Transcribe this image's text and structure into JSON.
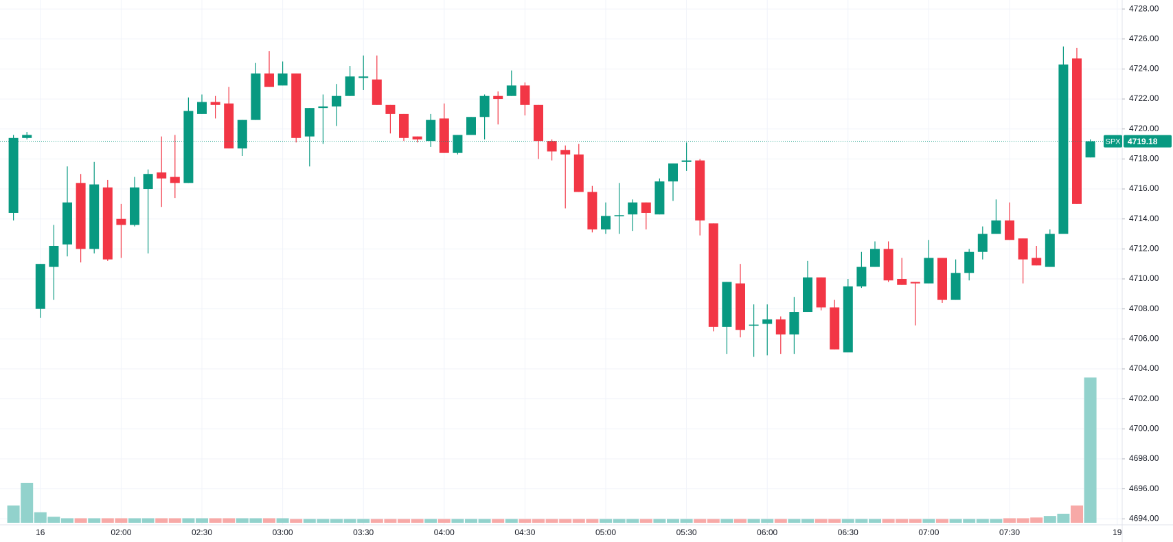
{
  "chart_data": {
    "type": "candlestick",
    "categories": [
      null,
      null,
      "16",
      null,
      null,
      null,
      null,
      null,
      "02:00",
      null,
      null,
      null,
      null,
      null,
      "02:30",
      null,
      null,
      null,
      null,
      null,
      "03:00",
      null,
      null,
      null,
      null,
      null,
      "03:30",
      null,
      null,
      null,
      null,
      null,
      "04:00",
      null,
      null,
      null,
      null,
      null,
      "04:30",
      null,
      null,
      null,
      null,
      null,
      "05:00",
      null,
      null,
      null,
      null,
      null,
      "05:30",
      null,
      null,
      null,
      null,
      null,
      "06:00",
      null,
      null,
      null,
      null,
      null,
      "06:30",
      null,
      null,
      null,
      null,
      null,
      "07:00",
      null,
      null,
      null,
      null,
      null,
      "07:30",
      null,
      null,
      null,
      null,
      null,
      null,
      null,
      "19"
    ],
    "open": [
      4714.4,
      4719.4,
      4708.0,
      4710.8,
      4712.3,
      4716.4,
      4712.0,
      4716.1,
      4714.0,
      4713.6,
      4716.0,
      4717.1,
      4716.8,
      4716.4,
      4721.0,
      4721.8,
      4721.7,
      4718.7,
      4720.6,
      4723.7,
      4722.9,
      4723.7,
      4719.5,
      4721.4,
      4721.5,
      4722.2,
      4723.4,
      4723.3,
      4721.6,
      4721.0,
      4719.5,
      4719.2,
      4720.7,
      4718.4,
      4719.6,
      4720.8,
      4722.2,
      4722.2,
      4722.9,
      4721.6,
      4719.2,
      4718.6,
      4718.3,
      4715.8,
      4713.3,
      4714.2,
      4714.3,
      4715.1,
      4714.3,
      4716.5,
      4717.8,
      4717.9,
      4713.7,
      4706.8,
      4709.7,
      4706.9,
      4707.0,
      4707.3,
      4706.3,
      4707.8,
      4710.1,
      4708.1,
      4705.1,
      4709.5,
      4710.8,
      4712.0,
      4710.0,
      4709.8,
      4709.7,
      4711.4,
      4708.6,
      4710.4,
      4711.8,
      4713.0,
      4713.9,
      4712.7,
      4711.4,
      4710.8,
      4713.0,
      4724.7,
      4718.1,
      null,
      null
    ],
    "high": [
      4719.6,
      4719.8,
      4711.0,
      4713.6,
      4717.5,
      4717.0,
      4717.8,
      4716.6,
      4715.0,
      4716.8,
      4717.3,
      4719.5,
      4719.6,
      4722.1,
      4722.3,
      4722.2,
      4722.8,
      4720.6,
      4724.4,
      4725.2,
      4724.5,
      4723.7,
      4721.4,
      4722.3,
      4723.0,
      4724.2,
      4724.9,
      4724.9,
      4721.6,
      4721.0,
      4719.5,
      4721.0,
      4721.7,
      4719.6,
      4720.8,
      4722.3,
      4722.5,
      4723.9,
      4723.1,
      4721.6,
      4719.3,
      4718.9,
      4719.0,
      4716.2,
      4715.1,
      4716.4,
      4715.3,
      4715.1,
      4716.7,
      4717.7,
      4719.1,
      4718.0,
      4713.7,
      4709.8,
      4711.0,
      4708.3,
      4708.3,
      4707.5,
      4708.8,
      4711.2,
      4710.1,
      4708.6,
      4710.0,
      4711.8,
      4712.5,
      4712.5,
      4711.4,
      4709.8,
      4712.6,
      4711.4,
      4711.3,
      4712.0,
      4713.5,
      4715.3,
      4715.1,
      4712.7,
      4712.2,
      4713.3,
      4725.5,
      4725.4,
      4719.3,
      null,
      null
    ],
    "low": [
      4713.9,
      4719.3,
      4707.4,
      4708.6,
      4711.5,
      4711.1,
      4711.7,
      4711.2,
      4711.4,
      4713.5,
      4711.7,
      4714.8,
      4715.4,
      4716.4,
      4721.0,
      4720.7,
      4718.7,
      4718.2,
      4720.6,
      4722.8,
      4722.9,
      4719.1,
      4717.5,
      4719.0,
      4720.2,
      4722.2,
      4722.6,
      4721.6,
      4719.7,
      4719.2,
      4719.1,
      4718.8,
      4718.4,
      4718.3,
      4719.6,
      4719.3,
      4720.3,
      4722.2,
      4720.9,
      4718.0,
      4717.9,
      4714.7,
      4715.8,
      4713.1,
      4713.0,
      4713.0,
      4713.2,
      4713.3,
      4714.3,
      4715.2,
      4717.2,
      4712.9,
      4706.5,
      4705.0,
      4706.1,
      4704.8,
      4704.9,
      4705.0,
      4705.0,
      4707.8,
      4707.9,
      4705.3,
      4705.1,
      4709.4,
      4710.8,
      4709.8,
      4709.6,
      4706.9,
      4709.7,
      4708.4,
      4708.6,
      4709.9,
      4711.3,
      4713.0,
      4712.6,
      4709.7,
      4710.9,
      4710.8,
      4713.0,
      4715.0,
      4718.1,
      null,
      null
    ],
    "close": [
      4719.4,
      4719.6,
      4711.0,
      4712.2,
      4715.1,
      4712.0,
      4716.3,
      4711.3,
      4713.6,
      4716.1,
      4717.0,
      4716.7,
      4716.4,
      4721.2,
      4721.8,
      4721.6,
      4718.7,
      4720.6,
      4723.7,
      4722.8,
      4723.7,
      4719.4,
      4721.4,
      4721.5,
      4722.2,
      4723.5,
      4723.5,
      4721.6,
      4721.0,
      4719.4,
      4719.3,
      4720.6,
      4718.4,
      4719.6,
      4720.8,
      4722.2,
      4722.0,
      4722.9,
      4721.6,
      4719.2,
      4718.5,
      4718.3,
      4715.8,
      4713.3,
      4714.2,
      4714.25,
      4715.1,
      4714.4,
      4716.5,
      4717.7,
      4717.9,
      4713.9,
      4706.8,
      4709.8,
      4706.6,
      4706.95,
      4707.3,
      4706.3,
      4707.8,
      4710.1,
      4708.1,
      4705.3,
      4709.5,
      4710.8,
      4712.0,
      4709.9,
      4709.6,
      4709.7,
      4711.4,
      4708.6,
      4710.4,
      4711.8,
      4713.0,
      4713.9,
      4712.6,
      4711.3,
      4710.9,
      4713.0,
      4724.3,
      4715.0,
      4719.18,
      null,
      null
    ],
    "volume": [
      23,
      53,
      14,
      8,
      6,
      6,
      6,
      6,
      6,
      6,
      6,
      6,
      6,
      6,
      6,
      6,
      6,
      6,
      6,
      6,
      6,
      5,
      5,
      5,
      5,
      5,
      5,
      5,
      5,
      5,
      5,
      5,
      5,
      5,
      5,
      5,
      5,
      5,
      5,
      5,
      5,
      5,
      5,
      5,
      5,
      5,
      5,
      5,
      5,
      5,
      5,
      5,
      5,
      5,
      5,
      5,
      5,
      5,
      5,
      5,
      5,
      5,
      5,
      5,
      5,
      5,
      5,
      5,
      5,
      5,
      5,
      5,
      5,
      5,
      6,
      6,
      7,
      9,
      12,
      23,
      193,
      null,
      null
    ],
    "up_color": "#089981",
    "down_color": "#f23645",
    "volume_up_color": "#92d2cc",
    "volume_down_color": "#f7a9a7",
    "ylim": [
      4693.6,
      4728.6
    ],
    "yticks": [
      {
        "value": 4694,
        "label": "4694.00"
      },
      {
        "value": 4696,
        "label": "4696.00"
      },
      {
        "value": 4698,
        "label": "4698.00"
      },
      {
        "value": 4700,
        "label": "4700.00"
      },
      {
        "value": 4702,
        "label": "4702.00"
      },
      {
        "value": 4704,
        "label": "4704.00"
      },
      {
        "value": 4706,
        "label": "4706.00"
      },
      {
        "value": 4708,
        "label": "4708.00"
      },
      {
        "value": 4710,
        "label": "4710.00"
      },
      {
        "value": 4712,
        "label": "4712.00"
      },
      {
        "value": 4714,
        "label": "4714.00"
      },
      {
        "value": 4716,
        "label": "4716.00"
      },
      {
        "value": 4718,
        "label": "4718.00"
      },
      {
        "value": 4720,
        "label": "4720.00"
      },
      {
        "value": 4722,
        "label": "4722.00"
      },
      {
        "value": 4724,
        "label": "4724.00"
      },
      {
        "value": 4726,
        "label": "4726.00"
      },
      {
        "value": 4728,
        "label": "4728.00"
      }
    ],
    "grid": true,
    "last_price": {
      "label": "SPX",
      "value": 4719.18
    }
  }
}
